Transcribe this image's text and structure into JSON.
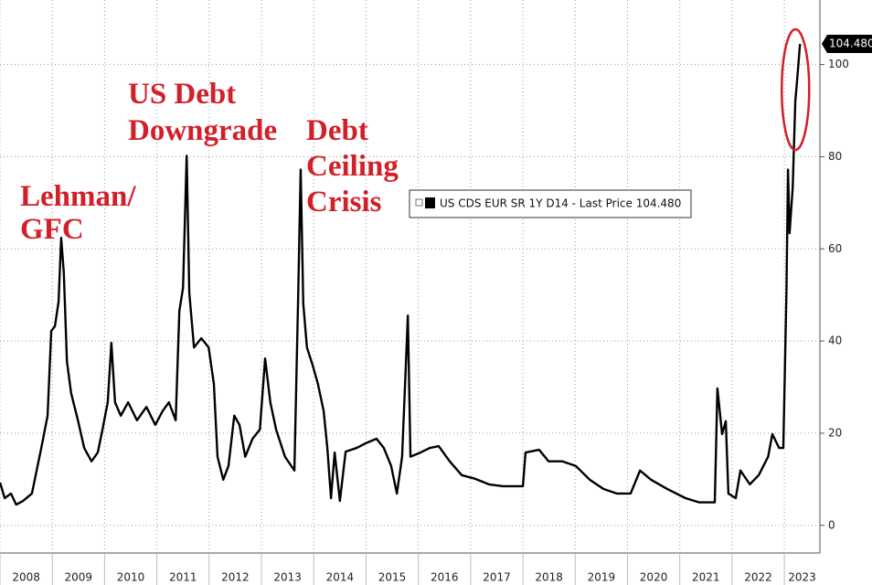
{
  "chart_data": {
    "type": "line",
    "series": [
      {
        "name": "US CDS EUR SR 1Y D14 - Last Price 104.480",
        "color": "#000000",
        "x": [
          2008.0,
          2008.09,
          2008.21,
          2008.31,
          2008.44,
          2008.61,
          2008.79,
          2008.91,
          2008.98,
          2009.05,
          2009.12,
          2009.17,
          2009.22,
          2009.28,
          2009.36,
          2009.49,
          2009.61,
          2009.75,
          2009.87,
          2009.96,
          2010.06,
          2010.13,
          2010.2,
          2010.31,
          2010.45,
          2010.62,
          2010.8,
          2010.97,
          2011.11,
          2011.23,
          2011.36,
          2011.43,
          2011.5,
          2011.57,
          2011.62,
          2011.71,
          2011.85,
          2011.99,
          2012.09,
          2012.16,
          2012.27,
          2012.37,
          2012.48,
          2012.58,
          2012.69,
          2012.83,
          2012.97,
          2013.07,
          2013.17,
          2013.28,
          2013.45,
          2013.63,
          2013.7,
          2013.75,
          2013.8,
          2013.87,
          2013.98,
          2014.08,
          2014.19,
          2014.26,
          2014.33,
          2014.4,
          2014.5,
          2014.61,
          2014.82,
          2014.99,
          2015.2,
          2015.34,
          2015.48,
          2015.59,
          2015.69,
          2015.8,
          2015.85,
          2016.04,
          2016.22,
          2016.39,
          2016.6,
          2016.83,
          2017.09,
          2017.35,
          2017.62,
          2018.0,
          2018.05,
          2018.31,
          2018.49,
          2018.75,
          2019.01,
          2019.28,
          2019.54,
          2019.8,
          2020.06,
          2020.24,
          2020.45,
          2020.76,
          2021.11,
          2021.37,
          2021.67,
          2021.72,
          2021.81,
          2021.88,
          2021.93,
          2022.07,
          2022.16,
          2022.34,
          2022.51,
          2022.69,
          2022.77,
          2022.9,
          2022.98,
          2023.04,
          2023.07,
          2023.1,
          2023.16,
          2023.21,
          2023.24,
          2023.3
        ],
        "values": [
          9.3,
          5.9,
          6.9,
          4.5,
          5.3,
          6.9,
          16.8,
          23.8,
          42.2,
          43.2,
          48.5,
          62.4,
          54.9,
          35.6,
          28.7,
          22.8,
          16.8,
          13.9,
          15.8,
          20.8,
          26.7,
          39.6,
          26.7,
          23.8,
          26.7,
          22.8,
          25.7,
          21.8,
          24.8,
          26.7,
          22.8,
          46.5,
          51.5,
          80.2,
          50.5,
          38.6,
          40.6,
          38.6,
          30.7,
          14.9,
          9.9,
          12.9,
          23.8,
          21.8,
          14.9,
          18.8,
          20.8,
          36.2,
          26.7,
          20.8,
          14.9,
          11.9,
          48.5,
          77.2,
          48.1,
          38.6,
          34.7,
          30.7,
          24.8,
          16.8,
          5.9,
          15.8,
          5.3,
          16.0,
          16.8,
          17.8,
          18.8,
          16.8,
          12.9,
          6.9,
          14.9,
          45.5,
          14.9,
          15.8,
          16.8,
          17.2,
          13.9,
          10.9,
          10.1,
          8.9,
          8.5,
          8.5,
          15.8,
          16.4,
          13.9,
          13.9,
          12.9,
          9.9,
          7.9,
          6.9,
          6.9,
          11.9,
          9.9,
          7.9,
          5.9,
          5.0,
          5.0,
          29.7,
          19.8,
          22.6,
          6.9,
          5.9,
          11.9,
          8.9,
          10.9,
          14.9,
          19.8,
          16.8,
          16.8,
          50.5,
          77.2,
          63.4,
          73.3,
          92.1,
          96.0,
          104.48
        ],
        "value_labels": [
          null,
          null,
          null,
          null,
          null,
          null,
          null,
          null,
          null,
          null,
          null,
          null,
          null,
          null,
          null,
          null,
          null,
          null,
          null,
          null,
          null,
          null,
          null,
          null,
          null,
          null,
          null,
          null,
          null,
          null,
          null,
          null,
          null,
          null,
          null,
          null,
          null,
          null,
          null,
          null,
          null,
          null,
          null,
          null,
          null,
          null,
          null,
          null,
          null,
          null,
          null,
          null,
          null,
          null,
          null,
          null,
          null,
          null,
          null,
          null,
          null,
          null,
          null,
          null,
          null,
          null,
          null,
          null,
          null,
          null,
          null,
          null,
          null,
          null,
          null,
          null,
          null,
          null,
          null,
          null,
          null,
          null,
          null,
          null,
          null,
          null,
          null,
          null,
          null,
          null,
          null,
          null,
          null,
          null,
          null,
          null,
          null,
          null,
          null,
          null,
          null,
          null,
          null,
          null,
          null,
          null,
          null,
          null,
          null,
          null,
          null,
          null,
          null,
          null,
          null,
          "104.480"
        ]
      }
    ],
    "xlim": [
      2008,
      2023.68
    ],
    "xticks": [
      2008,
      2009,
      2010,
      2011,
      2012,
      2013,
      2014,
      2015,
      2016,
      2017,
      2018,
      2019,
      2020,
      2021,
      2022,
      2023
    ],
    "ylim": [
      -6,
      114
    ],
    "yticks": [
      0,
      20,
      40,
      60,
      80,
      100
    ],
    "grid": true,
    "annotations": [
      {
        "text": [
          "Lehman/",
          "GFC"
        ],
        "color": "#d2202a"
      },
      {
        "text": [
          "US Debt",
          "Downgrade"
        ],
        "color": "#d2202a"
      },
      {
        "text": [
          "Debt",
          "Ceiling",
          "Crisis"
        ],
        "color": "#d2202a"
      }
    ]
  }
}
